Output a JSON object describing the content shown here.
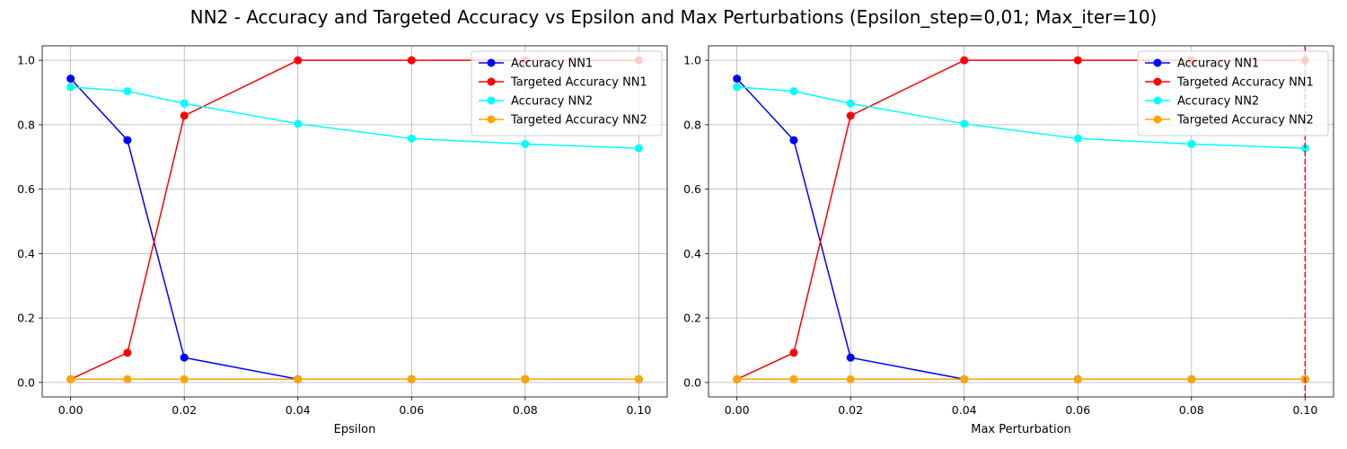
{
  "figure": {
    "title": "NN2 - Accuracy and Targeted Accuracy vs Epsilon and Max Perturbations (Epsilon_step=0,01; Max_iter=10)"
  },
  "chart_data": [
    {
      "type": "line",
      "title": "",
      "xlabel": "Epsilon",
      "ylabel": "",
      "x": [
        0.0,
        0.01,
        0.02,
        0.04,
        0.06,
        0.08,
        0.1
      ],
      "xlim": [
        -0.005,
        0.105
      ],
      "ylim": [
        -0.045,
        1.045
      ],
      "xticks": [
        "0.00",
        "0.02",
        "0.04",
        "0.06",
        "0.08",
        "0.10"
      ],
      "yticks": [
        "0.0",
        "0.2",
        "0.4",
        "0.6",
        "0.8",
        "1.0"
      ],
      "grid": true,
      "legend_position": "top-right",
      "series": [
        {
          "name": "Accuracy NN1",
          "color": "#0000ff",
          "values": [
            0.943,
            0.752,
            0.077,
            0.01,
            0.01,
            0.01,
            0.01
          ]
        },
        {
          "name": "Targeted Accuracy NN1",
          "color": "#ff0000",
          "values": [
            0.01,
            0.092,
            0.828,
            1.0,
            1.0,
            1.0,
            1.0
          ]
        },
        {
          "name": "Accuracy NN2",
          "color": "#00ffff",
          "values": [
            0.917,
            0.904,
            0.866,
            0.803,
            0.757,
            0.74,
            0.727
          ]
        },
        {
          "name": "Targeted Accuracy NN2",
          "color": "#ffa500",
          "values": [
            0.01,
            0.01,
            0.01,
            0.01,
            0.01,
            0.01,
            0.01
          ]
        }
      ]
    },
    {
      "type": "line",
      "title": "",
      "xlabel": "Max Perturbation",
      "ylabel": "",
      "x": [
        0.0,
        0.01,
        0.02,
        0.04,
        0.06,
        0.08,
        0.1
      ],
      "xlim": [
        -0.005,
        0.105
      ],
      "ylim": [
        -0.045,
        1.045
      ],
      "xticks": [
        "0.00",
        "0.02",
        "0.04",
        "0.06",
        "0.08",
        "0.10"
      ],
      "yticks": [
        "0.0",
        "0.2",
        "0.4",
        "0.6",
        "0.8",
        "1.0"
      ],
      "grid": true,
      "legend_position": "top-right",
      "vline": {
        "x": 0.1,
        "color": "#ff0000",
        "style": "dashed"
      },
      "series": [
        {
          "name": "Accuracy NN1",
          "color": "#0000ff",
          "values": [
            0.943,
            0.752,
            0.077,
            0.01,
            0.01,
            0.01,
            0.01
          ]
        },
        {
          "name": "Targeted Accuracy NN1",
          "color": "#ff0000",
          "values": [
            0.01,
            0.092,
            0.828,
            1.0,
            1.0,
            1.0,
            1.0
          ]
        },
        {
          "name": "Accuracy NN2",
          "color": "#00ffff",
          "values": [
            0.917,
            0.904,
            0.866,
            0.803,
            0.757,
            0.74,
            0.727
          ]
        },
        {
          "name": "Targeted Accuracy NN2",
          "color": "#ffa500",
          "values": [
            0.01,
            0.01,
            0.01,
            0.01,
            0.01,
            0.01,
            0.01
          ]
        }
      ]
    }
  ]
}
